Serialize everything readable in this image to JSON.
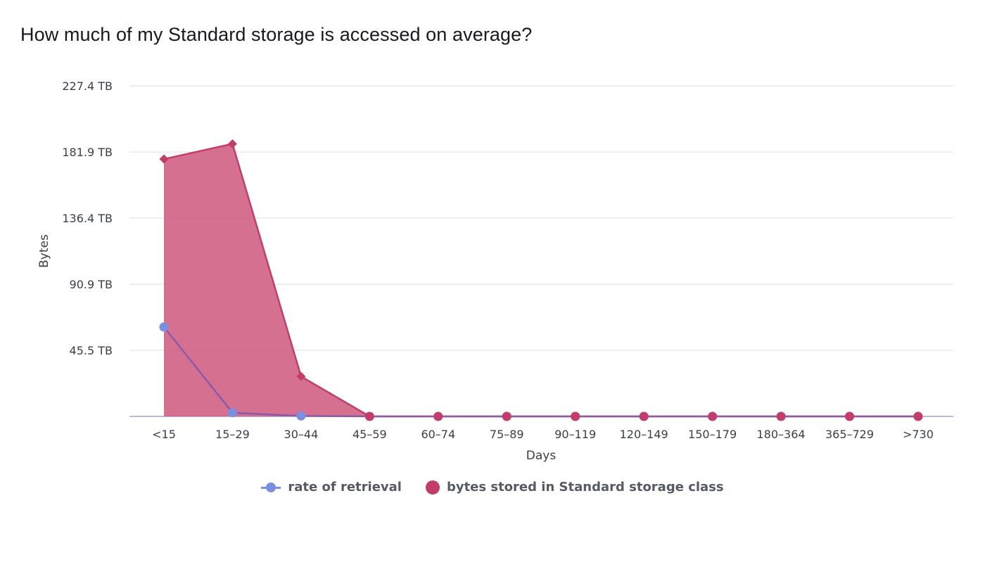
{
  "page": {
    "title": "How much of my Standard storage is accessed on average?"
  },
  "chart_data": {
    "type": "area",
    "title": "How much of my Standard storage is accessed on average?",
    "xlabel": "Days",
    "ylabel": "Bytes",
    "categories": [
      "<15",
      "15–29",
      "30–44",
      "45–59",
      "60–74",
      "75–89",
      "90–119",
      "120–149",
      "150–179",
      "180–364",
      "365–729",
      ">730"
    ],
    "y_ticks": [
      {
        "value": 45.5,
        "label": "45.5 TB"
      },
      {
        "value": 90.9,
        "label": "90.9 TB"
      },
      {
        "value": 136.4,
        "label": "136.4 TB"
      },
      {
        "value": 181.9,
        "label": "181.9 TB"
      },
      {
        "value": 227.4,
        "label": "227.4 TB"
      }
    ],
    "ylim": [
      0,
      227.4
    ],
    "y_unit": "TB",
    "grid": true,
    "legend_position": "bottom-center",
    "series": [
      {
        "name": "rate of retrieval",
        "kind": "line",
        "marker": "circle",
        "color": "#7b8fe0",
        "values": [
          61.5,
          2.5,
          0.3,
          0,
          0,
          0,
          0,
          0,
          0,
          0,
          0,
          0
        ]
      },
      {
        "name": "bytes stored in Standard storage class",
        "kind": "area",
        "marker": "diamond",
        "color": "#c33d69",
        "fill": "#d05c81",
        "values": [
          177,
          187.5,
          27.5,
          0,
          0,
          0,
          0,
          0,
          0,
          0,
          0,
          0
        ]
      }
    ]
  }
}
